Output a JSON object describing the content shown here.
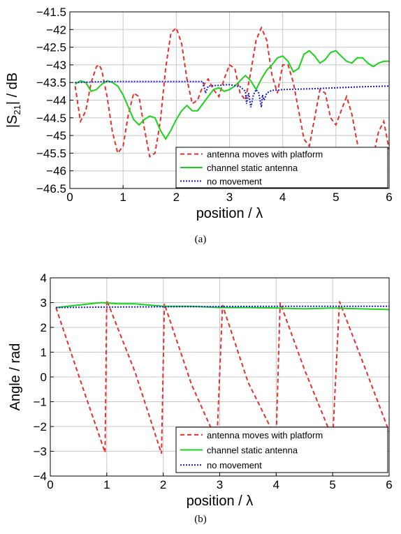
{
  "chart_data": [
    {
      "type": "line",
      "caption": "(a)",
      "xlabel": "position / λ",
      "ylabel_main": "|S",
      "ylabel_sub": "21",
      "ylabel_rest": "| / dB",
      "xlim": [
        0,
        6
      ],
      "ylim": [
        -46.5,
        -41.5
      ],
      "xticks": [
        0,
        1,
        2,
        3,
        4,
        5,
        6
      ],
      "xtick_labels": [
        "0",
        "1",
        "2",
        "3",
        "4",
        "5",
        "6"
      ],
      "yticks": [
        -41.5,
        -42,
        -42.5,
        -43,
        -43.5,
        -44,
        -44.5,
        -45,
        -45.5,
        -46,
        -46.5
      ],
      "ytick_labels": [
        "−41.5",
        "−42",
        "−42.5",
        "−43",
        "−43.5",
        "−44",
        "−44.5",
        "−45",
        "−45.5",
        "−46",
        "−46.5"
      ],
      "grid": true,
      "legend_position": "bottom-right",
      "series": [
        {
          "name": "antenna moves with platform",
          "color": "#e8302a",
          "dash": "dashed",
          "x": [
            0.1,
            0.2,
            0.3,
            0.4,
            0.5,
            0.55,
            0.6,
            0.7,
            0.8,
            0.9,
            1.0,
            1.1,
            1.2,
            1.3,
            1.4,
            1.5,
            1.6,
            1.7,
            1.8,
            1.9,
            2.0,
            2.1,
            2.2,
            2.3,
            2.4,
            2.5,
            2.6,
            2.7,
            2.8,
            2.9,
            3.0,
            3.1,
            3.2,
            3.3,
            3.4,
            3.5,
            3.6,
            3.7,
            3.8,
            3.9,
            4.0,
            4.1,
            4.2,
            4.3,
            4.4,
            4.5,
            4.6,
            4.7,
            4.8,
            4.9,
            5.0,
            5.1,
            5.2,
            5.3,
            5.4,
            5.5,
            5.6,
            5.7,
            5.8,
            5.9,
            6.0
          ],
          "y": [
            -43.6,
            -44.6,
            -44.3,
            -43.5,
            -43.05,
            -43.0,
            -43.15,
            -43.9,
            -44.9,
            -45.5,
            -45.3,
            -44.4,
            -43.8,
            -43.9,
            -44.8,
            -45.6,
            -45.5,
            -44.6,
            -43.1,
            -42.1,
            -41.95,
            -42.4,
            -43.4,
            -44.1,
            -44.0,
            -43.6,
            -43.4,
            -43.7,
            -43.9,
            -43.4,
            -43.0,
            -43.1,
            -43.8,
            -44.0,
            -43.2,
            -42.3,
            -41.95,
            -42.3,
            -43.3,
            -43.8,
            -43.0,
            -43.0,
            -43.5,
            -44.3,
            -45.1,
            -45.3,
            -44.5,
            -43.7,
            -43.8,
            -44.5,
            -44.7,
            -44.3,
            -43.9,
            -44.4,
            -45.2,
            -45.8,
            -46.0,
            -45.6,
            -44.9,
            -44.6,
            -45.4
          ]
        },
        {
          "name": "channel static antenna",
          "color": "#19d419",
          "dash": "solid",
          "x": [
            0.1,
            0.2,
            0.3,
            0.4,
            0.5,
            0.6,
            0.7,
            0.8,
            0.9,
            1.0,
            1.1,
            1.2,
            1.3,
            1.4,
            1.5,
            1.6,
            1.7,
            1.8,
            1.9,
            2.0,
            2.1,
            2.2,
            2.3,
            2.4,
            2.5,
            2.6,
            2.7,
            2.8,
            2.9,
            3.0,
            3.1,
            3.2,
            3.3,
            3.4,
            3.5,
            3.6,
            3.7,
            3.8,
            3.9,
            4.0,
            4.1,
            4.2,
            4.3,
            4.4,
            4.5,
            4.6,
            4.7,
            4.8,
            4.9,
            5.0,
            5.1,
            5.2,
            5.3,
            5.4,
            5.5,
            5.6,
            5.7,
            5.8,
            5.9,
            6.0
          ],
          "y": [
            -43.55,
            -43.45,
            -43.5,
            -43.75,
            -43.7,
            -43.55,
            -43.45,
            -43.5,
            -43.6,
            -43.85,
            -44.2,
            -44.55,
            -44.7,
            -44.55,
            -44.45,
            -44.5,
            -44.85,
            -45.1,
            -44.85,
            -44.55,
            -44.3,
            -44.15,
            -44.3,
            -44.3,
            -44.1,
            -43.9,
            -43.7,
            -43.65,
            -43.75,
            -43.7,
            -43.6,
            -43.45,
            -43.3,
            -43.45,
            -43.7,
            -43.4,
            -43.15,
            -43.0,
            -42.8,
            -42.75,
            -42.9,
            -43.2,
            -43.1,
            -42.7,
            -42.6,
            -42.75,
            -42.95,
            -42.85,
            -42.65,
            -42.6,
            -42.75,
            -42.9,
            -42.95,
            -42.8,
            -42.8,
            -42.95,
            -43.05,
            -42.95,
            -42.9,
            -42.9
          ]
        },
        {
          "name": "no movement",
          "color": "#1a1ad6",
          "dash": "dotted",
          "x": [
            0.1,
            0.5,
            1.0,
            1.5,
            2.0,
            2.5,
            2.55,
            2.6,
            2.8,
            3.0,
            3.2,
            3.3,
            3.32,
            3.36,
            3.4,
            3.45,
            3.5,
            3.55,
            3.6,
            3.62,
            3.65,
            3.7,
            3.8,
            3.9,
            4.0,
            4.5,
            5.0,
            5.5,
            6.0
          ],
          "y": [
            -43.5,
            -43.48,
            -43.47,
            -43.47,
            -43.47,
            -43.47,
            -43.8,
            -43.6,
            -43.58,
            -43.56,
            -43.62,
            -43.75,
            -44.1,
            -43.8,
            -44.2,
            -43.85,
            -43.7,
            -43.8,
            -44.2,
            -43.85,
            -44.0,
            -43.8,
            -43.72,
            -43.72,
            -43.7,
            -43.68,
            -43.65,
            -43.62,
            -43.6
          ]
        }
      ]
    },
    {
      "type": "line",
      "caption": "(b)",
      "xlabel": "position / λ",
      "ylabel": "Angle / rad",
      "xlim": [
        0,
        6
      ],
      "ylim": [
        -4,
        4
      ],
      "xticks": [
        0,
        1,
        2,
        3,
        4,
        5,
        6
      ],
      "xtick_labels": [
        "0",
        "1",
        "2",
        "3",
        "4",
        "5",
        "6"
      ],
      "yticks": [
        4,
        3,
        2,
        1,
        0,
        -1,
        -2,
        -3,
        -4
      ],
      "ytick_labels": [
        "4",
        "3",
        "2",
        "1",
        "0",
        "−1",
        "−2",
        "−3",
        "−4"
      ],
      "grid": true,
      "legend_position": "bottom-right",
      "series": [
        {
          "name": "antenna moves with platform",
          "color": "#e8302a",
          "dash": "dashed",
          "x": [
            0.1,
            0.6,
            0.97,
            1.0,
            1.5,
            1.97,
            2.02,
            2.5,
            2.95,
            3.05,
            3.5,
            4.0,
            4.07,
            4.5,
            5.0,
            5.12,
            5.6,
            6.0
          ],
          "y": [
            2.8,
            -0.6,
            -3.05,
            3.1,
            0.2,
            -3.1,
            2.95,
            -0.3,
            -2.6,
            2.9,
            -0.2,
            -2.5,
            3.0,
            0.3,
            -2.5,
            3.05,
            0.2,
            -2.2
          ]
        },
        {
          "name": "channel static antenna",
          "color": "#19d419",
          "dash": "solid",
          "x": [
            0.1,
            0.5,
            0.9,
            1.2,
            1.5,
            2.0,
            2.5,
            3.0,
            3.5,
            4.0,
            4.5,
            5.0,
            5.5,
            6.0
          ],
          "y": [
            2.8,
            2.9,
            3.0,
            2.95,
            2.95,
            2.85,
            2.85,
            2.8,
            2.8,
            2.78,
            2.75,
            2.78,
            2.75,
            2.72
          ]
        },
        {
          "name": "no movement",
          "color": "#1a1ad6",
          "dash": "dotted",
          "x": [
            0.1,
            1.0,
            2.0,
            3.0,
            4.0,
            5.0,
            6.0
          ],
          "y": [
            2.8,
            2.82,
            2.83,
            2.84,
            2.85,
            2.85,
            2.85
          ]
        }
      ]
    }
  ]
}
